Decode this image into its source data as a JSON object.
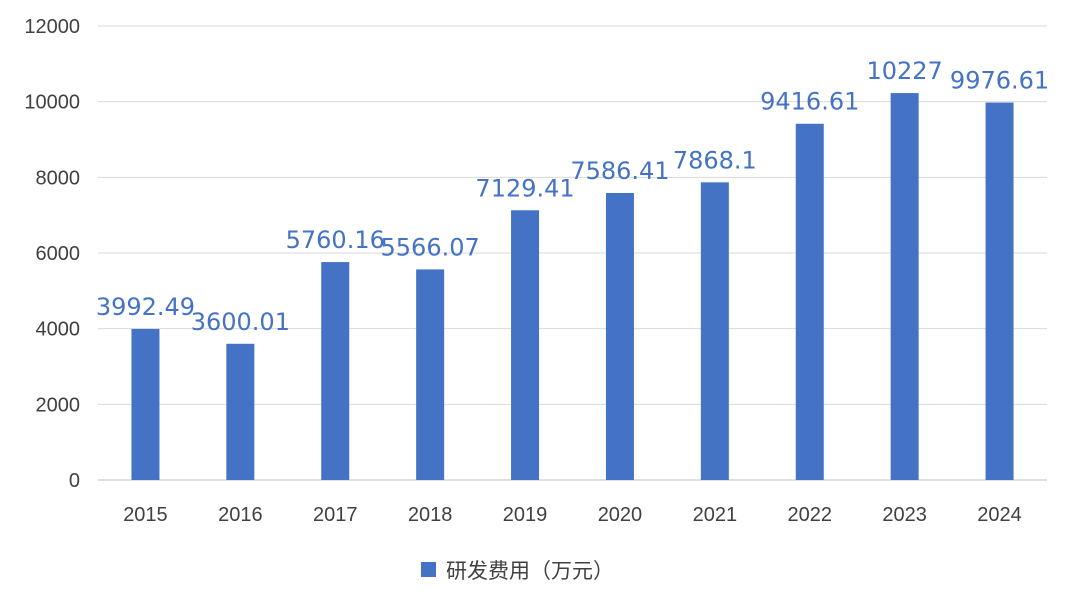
{
  "chart_data": {
    "type": "bar",
    "categories": [
      "2015",
      "2016",
      "2017",
      "2018",
      "2019",
      "2020",
      "2021",
      "2022",
      "2023",
      "2024"
    ],
    "series": [
      {
        "name": "研发费用（万元）",
        "values": [
          3992.49,
          3600.01,
          5760.16,
          5566.07,
          7129.41,
          7586.41,
          7868.1,
          9416.61,
          10227,
          9976.61
        ],
        "labels": [
          "3992.49",
          "3600.01",
          "5760.16",
          "5566.07",
          "7129.41",
          "7586.41",
          "7868.1",
          "9416.61",
          "10227",
          "9976.61"
        ],
        "color": "#4472C4"
      }
    ],
    "title": "",
    "xlabel": "",
    "ylabel": "",
    "ylim": [
      0,
      12000
    ],
    "yticks": [
      "0",
      "2000",
      "4000",
      "6000",
      "8000",
      "10000",
      "12000"
    ],
    "grid": true,
    "gridColor": "#D9D9D9",
    "legend": "bottom"
  }
}
